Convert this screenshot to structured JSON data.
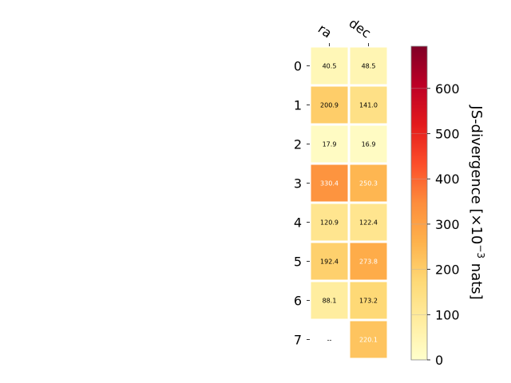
{
  "chart_data": {
    "type": "heatmap",
    "columns": [
      "ra",
      "dec"
    ],
    "rows": [
      "0",
      "1",
      "2",
      "3",
      "4",
      "5",
      "6",
      "7"
    ],
    "values": [
      [
        40.5,
        48.5
      ],
      [
        200.9,
        141.0
      ],
      [
        17.9,
        16.9
      ],
      [
        330.4,
        250.3
      ],
      [
        120.9,
        122.4
      ],
      [
        192.4,
        273.8
      ],
      [
        88.1,
        173.2
      ],
      [
        null,
        220.1
      ]
    ],
    "cell_labels": [
      [
        "40.5",
        "48.5"
      ],
      [
        "200.9",
        "141.0"
      ],
      [
        "17.9",
        "16.9"
      ],
      [
        "330.4",
        "250.3"
      ],
      [
        "120.9",
        "122.4"
      ],
      [
        "192.4",
        "273.8"
      ],
      [
        "88.1",
        "173.2"
      ],
      [
        "--",
        "220.1"
      ]
    ],
    "colorbar": {
      "label_main": "JS-divergence [×10",
      "label_exp": "−3",
      "label_unit": " nats]",
      "ticks": [
        0,
        100,
        200,
        300,
        400,
        500,
        600
      ],
      "range": [
        0,
        693.1
      ],
      "colormap": "YlOrRd"
    }
  }
}
